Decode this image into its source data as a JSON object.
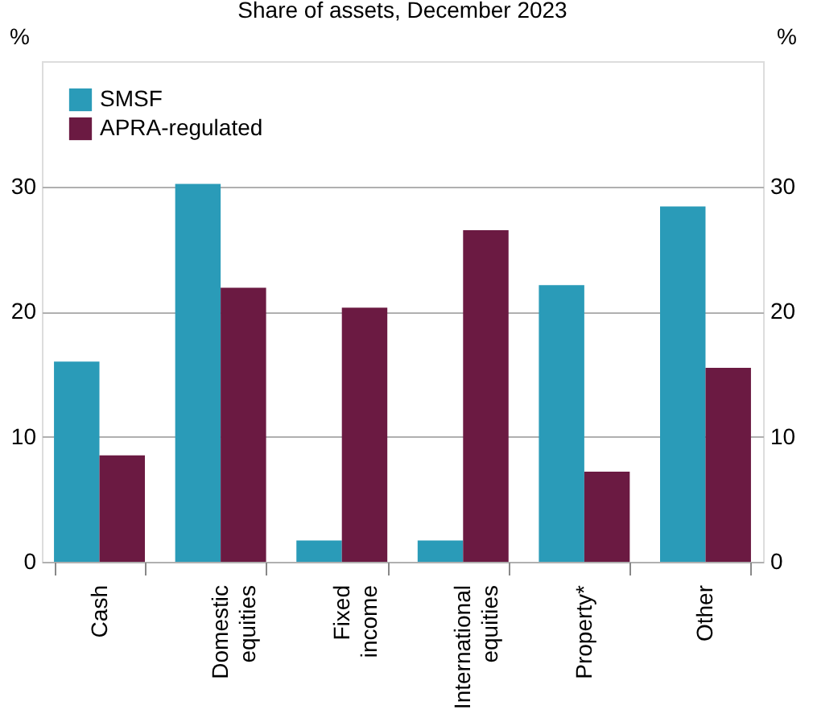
{
  "chart_data": {
    "type": "bar",
    "title": "Share of assets, December 2023",
    "categories": [
      "Cash",
      "Domestic equities",
      "Fixed income",
      "International equities",
      "Property*",
      "Other"
    ],
    "series": [
      {
        "name": "SMSF",
        "color": "#2a9bb8",
        "values": [
          16.0,
          30.2,
          1.7,
          1.7,
          22.1,
          28.4
        ]
      },
      {
        "name": "APRA-regulated",
        "color": "#6b1a42",
        "values": [
          8.5,
          21.9,
          20.3,
          26.5,
          7.2,
          15.5
        ]
      }
    ],
    "ylabel": "%",
    "y2label": "%",
    "ylim": [
      0,
      40
    ],
    "yticks": [
      0,
      10,
      20,
      30
    ],
    "y2lim": [
      0,
      40
    ],
    "y2ticks": [
      0,
      10,
      20,
      30
    ],
    "grid": "y",
    "legend": "top left"
  }
}
